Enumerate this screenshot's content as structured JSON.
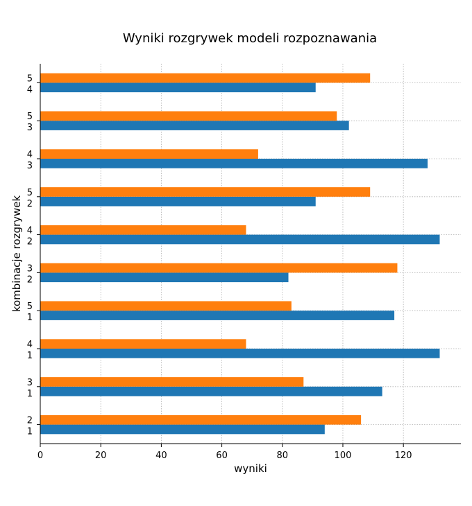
{
  "chart_data": {
    "type": "bar",
    "orientation": "horizontal",
    "title": "Wyniki rozgrywek modeli rozpoznawania",
    "xlabel": "wyniki",
    "ylabel": "kombinacje rozgrywek",
    "xlim": [
      0,
      139
    ],
    "xticks": [
      0,
      20,
      40,
      60,
      80,
      100,
      120
    ],
    "grid": true,
    "categories": [
      {
        "first": "1",
        "second": "2"
      },
      {
        "first": "1",
        "second": "3"
      },
      {
        "first": "1",
        "second": "4"
      },
      {
        "first": "1",
        "second": "5"
      },
      {
        "first": "2",
        "second": "3"
      },
      {
        "first": "2",
        "second": "4"
      },
      {
        "first": "2",
        "second": "5"
      },
      {
        "first": "3",
        "second": "4"
      },
      {
        "first": "3",
        "second": "5"
      },
      {
        "first": "4",
        "second": "5"
      }
    ],
    "series": [
      {
        "color": "#1f77b4",
        "values": [
          94,
          113,
          132,
          117,
          82,
          132,
          91,
          128,
          102,
          91
        ]
      },
      {
        "color": "#ff7f0e",
        "values": [
          106,
          87,
          68,
          83,
          118,
          68,
          109,
          72,
          98,
          109
        ]
      }
    ]
  }
}
